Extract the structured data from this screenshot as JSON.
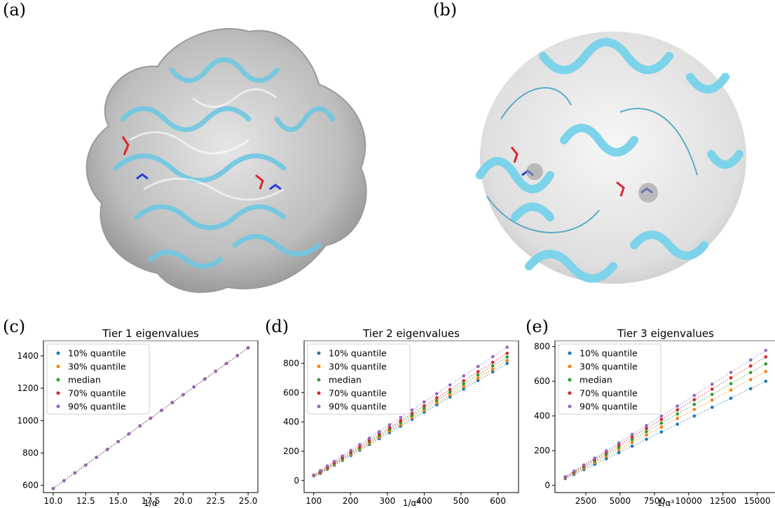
{
  "panels": {
    "a": {
      "label": "(a)"
    },
    "b": {
      "label": "(b)"
    },
    "c": {
      "label": "(c)"
    },
    "d": {
      "label": "(d)"
    },
    "e": {
      "label": "(e)"
    }
  },
  "colors": {
    "q10": "#1f77b4",
    "q30": "#ff7f0e",
    "median": "#2ca02c",
    "q70": "#d62728",
    "q90": "#9467bd",
    "ribbon": "#7dd3ea",
    "density": "#c9c9c9"
  },
  "chart_data": [
    {
      "type": "scatter",
      "title": "Tier 1 eigenvalues",
      "xlabel": "1/α",
      "xlim": [
        9.25,
        25.75
      ],
      "ylim": [
        555,
        1495
      ],
      "xticks": [
        "10.0",
        "12.5",
        "15.0",
        "17.5",
        "20.0",
        "22.5",
        "25.0"
      ],
      "xtick_values": [
        10,
        12.5,
        15,
        17.5,
        20,
        22.5,
        25
      ],
      "yticks": [
        "600",
        "800",
        "1000",
        "1200",
        "1400"
      ],
      "ytick_values": [
        600,
        800,
        1000,
        1200,
        1400
      ],
      "x": [
        10,
        10.83,
        11.67,
        12.5,
        13.33,
        14.17,
        15,
        15.83,
        16.67,
        17.5,
        18.33,
        19.17,
        20,
        20.83,
        21.67,
        22.5,
        23.33,
        24.17,
        25
      ],
      "series": [
        {
          "name": "10% quantile",
          "color": "#1f77b4",
          "intercept": 0,
          "slope": 58
        },
        {
          "name": "30% quantile",
          "color": "#ff7f0e",
          "intercept": 0,
          "slope": 58
        },
        {
          "name": "median",
          "color": "#2ca02c",
          "intercept": 0,
          "slope": 58
        },
        {
          "name": "70% quantile",
          "color": "#d62728",
          "intercept": 0,
          "slope": 58
        },
        {
          "name": "90% quantile",
          "color": "#9467bd",
          "intercept": 0,
          "slope": 58
        }
      ]
    },
    {
      "type": "scatter",
      "title": "Tier 2 eigenvalues",
      "xlabel": "1/α²",
      "xlim": [
        74,
        656
      ],
      "ylim": [
        -82,
        955
      ],
      "xticks": [
        "100",
        "200",
        "300",
        "400",
        "500",
        "600"
      ],
      "xtick_values": [
        100,
        200,
        300,
        400,
        500,
        600
      ],
      "yticks": [
        "0",
        "200",
        "400",
        "600",
        "800"
      ],
      "ytick_values": [
        0,
        200,
        400,
        600,
        800
      ],
      "x": [
        100,
        118,
        137,
        156,
        178,
        201,
        225,
        251,
        278,
        306,
        336,
        367,
        400,
        434,
        470,
        507,
        546,
        586,
        625
      ],
      "series": [
        {
          "name": "10% quantile",
          "color": "#1f77b4",
          "intercept": -126,
          "slope": 1.48
        },
        {
          "name": "30% quantile",
          "color": "#ff7f0e",
          "intercept": -125,
          "slope": 1.51
        },
        {
          "name": "median",
          "color": "#2ca02c",
          "intercept": -126,
          "slope": 1.55
        },
        {
          "name": "70% quantile",
          "color": "#d62728",
          "intercept": -126,
          "slope": 1.59
        },
        {
          "name": "90% quantile",
          "color": "#9467bd",
          "intercept": -128,
          "slope": 1.66
        }
      ]
    },
    {
      "type": "scatter",
      "title": "Tier 3 eigenvalues",
      "xlabel": "1/α³",
      "xlim": [
        250,
        16400
      ],
      "ylim": [
        -42,
        835
      ],
      "xticks": [
        "2500",
        "5000",
        "7500",
        "10000",
        "12500",
        "15000"
      ],
      "xtick_values": [
        2500,
        5000,
        7500,
        10000,
        12500,
        15000
      ],
      "yticks": [
        "0",
        "200",
        "400",
        "600",
        "800"
      ],
      "ytick_values": [
        0,
        200,
        400,
        600,
        800
      ],
      "x": [
        1000,
        1640,
        2360,
        3150,
        3990,
        4910,
        5880,
        6920,
        8010,
        9180,
        10410,
        11710,
        13080,
        14520,
        15625
      ],
      "series": [
        {
          "name": "10% quantile",
          "color": "#1f77b4",
          "intercept": 0,
          "slope": 0.0384
        },
        {
          "name": "30% quantile",
          "color": "#ff7f0e",
          "intercept": 0,
          "slope": 0.042
        },
        {
          "name": "median",
          "color": "#2ca02c",
          "intercept": 0,
          "slope": 0.0448
        },
        {
          "name": "70% quantile",
          "color": "#d62728",
          "intercept": 0,
          "slope": 0.0474
        },
        {
          "name": "90% quantile",
          "color": "#9467bd",
          "intercept": 0,
          "slope": 0.0498
        }
      ]
    }
  ]
}
